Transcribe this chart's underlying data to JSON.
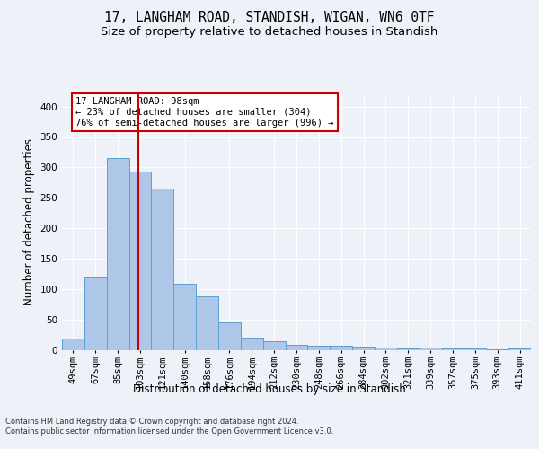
{
  "title_line1": "17, LANGHAM ROAD, STANDISH, WIGAN, WN6 0TF",
  "title_line2": "Size of property relative to detached houses in Standish",
  "xlabel": "Distribution of detached houses by size in Standish",
  "ylabel": "Number of detached properties",
  "categories": [
    "49sqm",
    "67sqm",
    "85sqm",
    "103sqm",
    "121sqm",
    "140sqm",
    "158sqm",
    "176sqm",
    "194sqm",
    "212sqm",
    "230sqm",
    "248sqm",
    "266sqm",
    "284sqm",
    "302sqm",
    "321sqm",
    "339sqm",
    "357sqm",
    "375sqm",
    "393sqm",
    "411sqm"
  ],
  "values": [
    19,
    120,
    315,
    294,
    266,
    109,
    88,
    45,
    20,
    15,
    9,
    8,
    7,
    6,
    4,
    3,
    5,
    3,
    3,
    1,
    3
  ],
  "bar_color": "#aec6e8",
  "bar_edge_color": "#5a9fd4",
  "bar_width": 1.0,
  "vline_x": 2.92,
  "vline_color": "#cc0000",
  "annotation_text": "17 LANGHAM ROAD: 98sqm\n← 23% of detached houses are smaller (304)\n76% of semi-detached houses are larger (996) →",
  "annotation_box_color": "#ffffff",
  "annotation_box_edge": "#cc0000",
  "ylim": [
    0,
    420
  ],
  "yticks": [
    0,
    50,
    100,
    150,
    200,
    250,
    300,
    350,
    400
  ],
  "background_color": "#eef2f8",
  "plot_bg_color": "#eef2f8",
  "grid_color": "#ffffff",
  "footer_line1": "Contains HM Land Registry data © Crown copyright and database right 2024.",
  "footer_line2": "Contains public sector information licensed under the Open Government Licence v3.0.",
  "title_fontsize": 10.5,
  "subtitle_fontsize": 9.5,
  "tick_fontsize": 7.5,
  "ylabel_fontsize": 8.5,
  "xlabel_fontsize": 8.5,
  "annotation_fontsize": 7.5
}
